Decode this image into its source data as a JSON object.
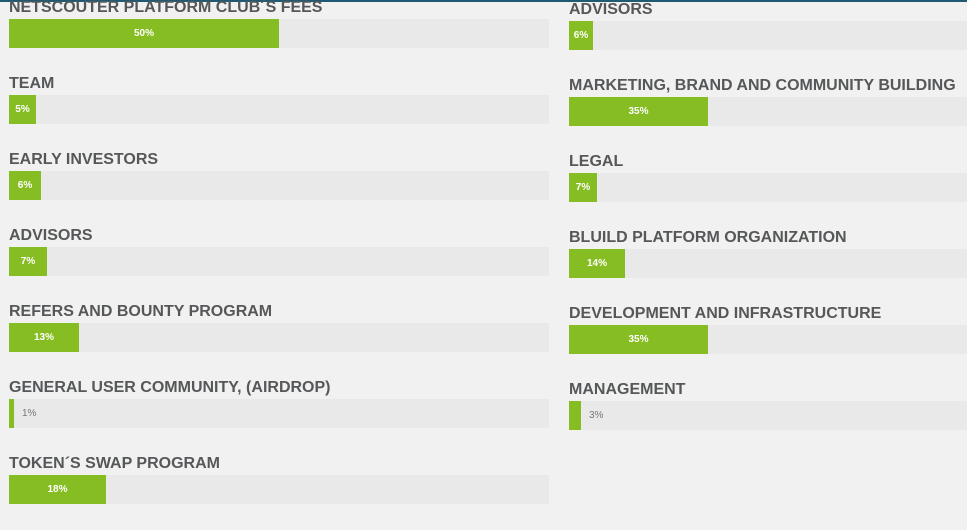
{
  "colors": {
    "accent": "#85bd22",
    "track": "#e9e9e9",
    "label": "#555759",
    "background": "#f1f1f1"
  },
  "left_column": [
    {
      "label": "NETSCOUTER PLATFORM CLUB´S FEES",
      "percent": 50,
      "percent_label": "50%"
    },
    {
      "label": "TEAM",
      "percent": 5,
      "percent_label": "5%"
    },
    {
      "label": "EARLY INVESTORS",
      "percent": 6,
      "percent_label": "6%"
    },
    {
      "label": "ADVISORS",
      "percent": 7,
      "percent_label": "7%"
    },
    {
      "label": "REFERS AND BOUNTY PROGRAM",
      "percent": 13,
      "percent_label": "13%"
    },
    {
      "label": "GENERAL USER COMMUNITY, (AIRDROP)",
      "percent": 1,
      "percent_label": "1%"
    },
    {
      "label": "TOKEN´S SWAP PROGRAM",
      "percent": 18,
      "percent_label": "18%"
    }
  ],
  "right_column": [
    {
      "label": "ADVISORS",
      "percent": 6,
      "percent_label": "6%"
    },
    {
      "label": "MARKETING, BRAND AND COMMUNITY BUILDING",
      "percent": 35,
      "percent_label": "35%"
    },
    {
      "label": "LEGAL",
      "percent": 7,
      "percent_label": "7%"
    },
    {
      "label": "BLUILD PLATFORM ORGANIZATION",
      "percent": 14,
      "percent_label": "14%"
    },
    {
      "label": "DEVELOPMENT AND INFRASTRUCTURE",
      "percent": 35,
      "percent_label": "35%"
    },
    {
      "label": "MANAGEMENT",
      "percent": 3,
      "percent_label": "3%"
    }
  ]
}
